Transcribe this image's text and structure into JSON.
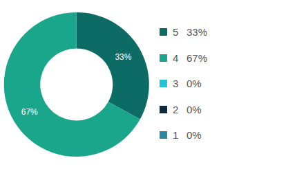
{
  "chart_data": {
    "type": "pie",
    "categories": [
      "5",
      "4",
      "3",
      "2",
      "1"
    ],
    "values": [
      33,
      67,
      0,
      0,
      0
    ],
    "value_labels": [
      "33%",
      "67%",
      "0%",
      "0%",
      "0%"
    ],
    "colors": [
      "#0d6b66",
      "#19a68b",
      "#25c1d6",
      "#0c2a3b",
      "#2b8aa3"
    ],
    "data_labels": true,
    "legend": "right"
  }
}
